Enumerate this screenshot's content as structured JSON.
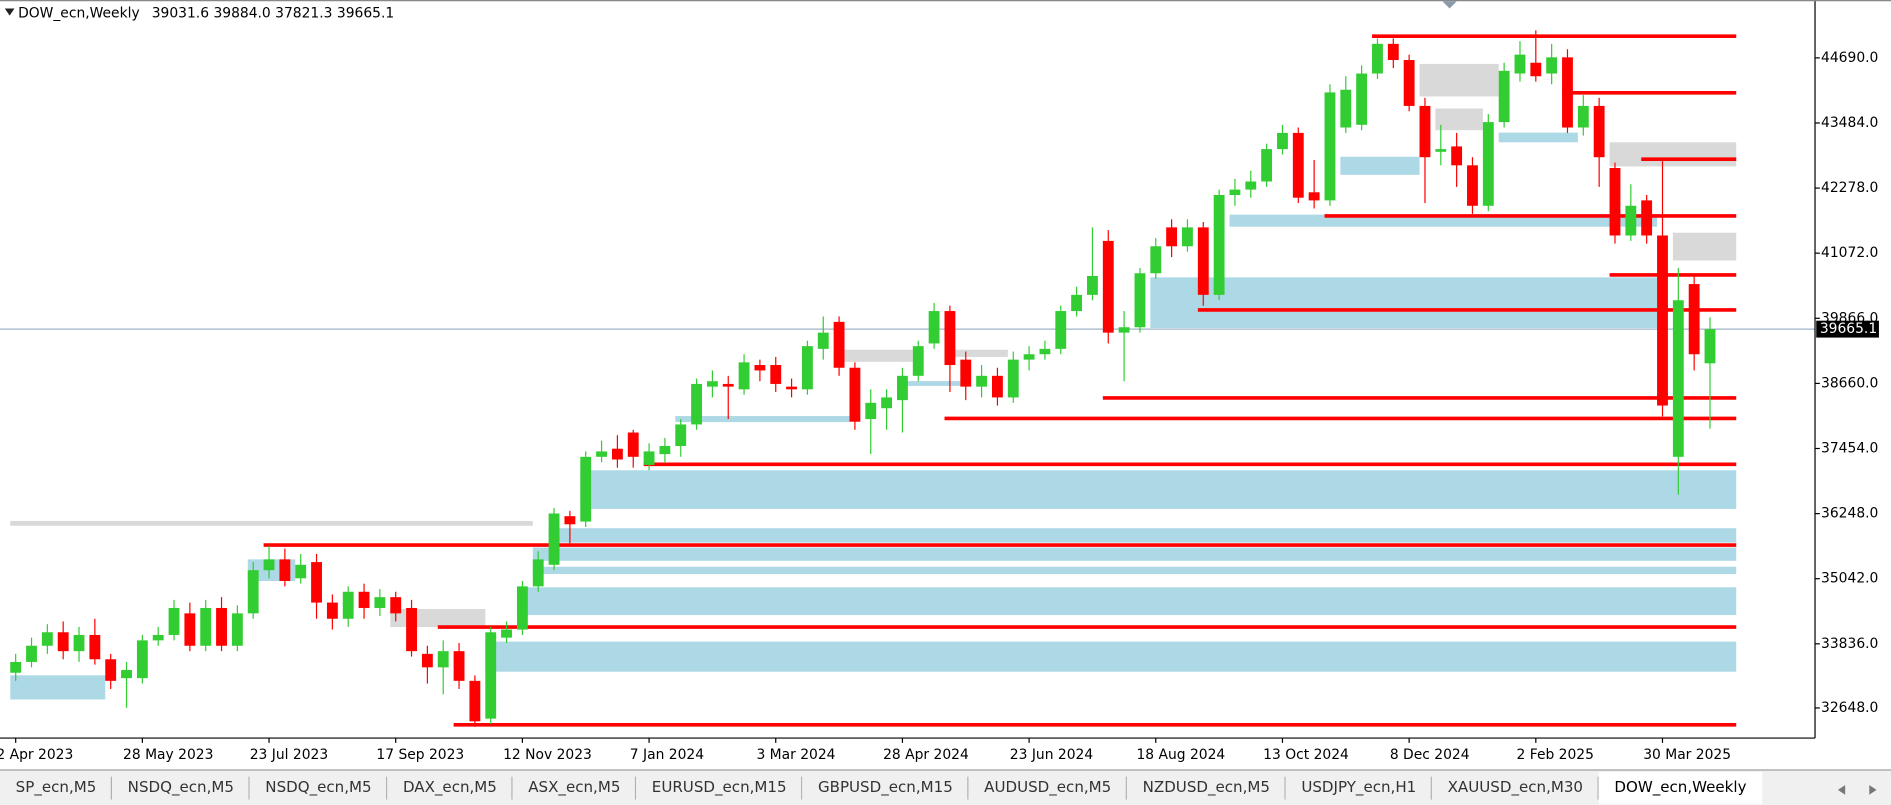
{
  "chart_data": {
    "type": "candlestick",
    "title": "DOW_ecn,Weekly",
    "subtitle": "39031.6 39884.0 37821.3 39665.1",
    "categories": [
      "2 Apr 2023",
      null,
      null,
      null,
      null,
      null,
      null,
      null,
      "28 May 2023",
      null,
      null,
      null,
      null,
      null,
      null,
      null,
      "23 Jul 2023",
      null,
      null,
      null,
      null,
      null,
      null,
      null,
      "17 Sep 2023",
      null,
      null,
      null,
      null,
      null,
      null,
      null,
      "12 Nov 2023",
      null,
      null,
      null,
      null,
      null,
      null,
      null,
      "7 Jan 2024",
      null,
      null,
      null,
      null,
      null,
      null,
      null,
      "3 Mar 2024",
      null,
      null,
      null,
      null,
      null,
      null,
      null,
      "28 Apr 2024",
      null,
      null,
      null,
      null,
      null,
      null,
      null,
      "23 Jun 2024",
      null,
      null,
      null,
      null,
      null,
      null,
      null,
      "18 Aug 2024",
      null,
      null,
      null,
      null,
      null,
      null,
      null,
      "13 Oct 2024",
      null,
      null,
      null,
      null,
      null,
      null,
      null,
      "8 Dec 2024",
      null,
      null,
      null,
      null,
      null,
      null,
      null,
      "2 Feb 2025",
      null,
      null,
      null,
      null,
      null,
      null,
      null,
      "30 Mar 2025",
      null,
      null,
      null
    ],
    "open": [
      33300,
      33500,
      33800,
      34050,
      33700,
      34000,
      33550,
      33200,
      33200,
      33900,
      34000,
      34400,
      33800,
      34500,
      33800,
      34400,
      35200,
      35400,
      35050,
      35350,
      34600,
      34300,
      34800,
      34500,
      34700,
      34500,
      33650,
      33400,
      33700,
      33150,
      32450,
      33950,
      34100,
      34900,
      35300,
      36200,
      36100,
      37300,
      37450,
      37750,
      37150,
      37350,
      37500,
      37900,
      38600,
      38650,
      38550,
      39000,
      39000,
      38600,
      38550,
      39300,
      39800,
      38950,
      38000,
      38200,
      38350,
      38800,
      39400,
      40000,
      39100,
      38600,
      38800,
      38400,
      39100,
      39200,
      39300,
      40000,
      40300,
      41300,
      39600,
      39700,
      40700,
      41550,
      41200,
      41550,
      40300,
      42150,
      42250,
      42400,
      43000,
      43300,
      42200,
      42050,
      43400,
      43450,
      44400,
      44950,
      44650,
      43800,
      42950,
      43050,
      42700,
      41950,
      43500,
      44400,
      44600,
      44400,
      44700,
      43400,
      43800,
      42650,
      41400,
      42050,
      41400,
      37300,
      40500,
      39031.6
    ],
    "high": [
      33650,
      33950,
      34200,
      34250,
      34150,
      34300,
      33650,
      33500,
      34000,
      34150,
      34650,
      34600,
      34650,
      34700,
      34550,
      35350,
      35650,
      35600,
      35500,
      35500,
      34750,
      34900,
      34950,
      34850,
      34800,
      34650,
      33800,
      33900,
      33850,
      33250,
      34150,
      34250,
      35000,
      35550,
      36350,
      36300,
      37400,
      37600,
      37700,
      37800,
      37550,
      37650,
      38000,
      38750,
      38900,
      38800,
      39200,
      39100,
      39150,
      38750,
      39450,
      39900,
      39900,
      39050,
      38550,
      38550,
      38950,
      39450,
      40150,
      40100,
      39250,
      39000,
      38950,
      39250,
      39350,
      39450,
      40100,
      40450,
      41550,
      41500,
      40000,
      40800,
      41350,
      41700,
      41700,
      41650,
      42250,
      42450,
      42600,
      43100,
      43450,
      43400,
      42800,
      44200,
      44350,
      44550,
      45050,
      45050,
      44750,
      43950,
      43450,
      43300,
      42850,
      43650,
      44600,
      45000,
      45200,
      44950,
      44850,
      44000,
      43950,
      42750,
      42350,
      42150,
      42800,
      40800,
      40650,
      39884.0
    ],
    "low": [
      33150,
      33400,
      33650,
      33550,
      33500,
      33450,
      33000,
      32650,
      33100,
      33800,
      33900,
      33700,
      33700,
      33700,
      33700,
      34300,
      35050,
      34900,
      34950,
      34300,
      34100,
      34150,
      34300,
      34350,
      34250,
      33600,
      33100,
      32900,
      33000,
      32300,
      32350,
      33850,
      34000,
      34800,
      35200,
      35700,
      36000,
      37200,
      37100,
      37100,
      37050,
      37200,
      37300,
      37800,
      38400,
      38000,
      38450,
      38700,
      38500,
      38400,
      38450,
      39100,
      38800,
      37800,
      37350,
      37800,
      37750,
      38700,
      39300,
      38500,
      38350,
      38400,
      38250,
      38300,
      38900,
      39100,
      39200,
      39900,
      40200,
      39400,
      38700,
      39600,
      40600,
      41000,
      41100,
      40100,
      40200,
      41950,
      42100,
      42300,
      42900,
      42000,
      41900,
      41950,
      43300,
      43350,
      44300,
      44500,
      43700,
      42000,
      42700,
      42300,
      41800,
      41850,
      43400,
      44250,
      44250,
      44200,
      43300,
      43250,
      42300,
      41250,
      41300,
      41250,
      38050,
      36600,
      38900,
      37821.3
    ],
    "close": [
      33500,
      33800,
      34050,
      33700,
      34000,
      33550,
      33150,
      33350,
      33900,
      34000,
      34500,
      33800,
      34500,
      33800,
      34400,
      35200,
      35400,
      35000,
      35300,
      34600,
      34300,
      34800,
      34500,
      34700,
      34400,
      33700,
      33400,
      33700,
      33150,
      32400,
      34050,
      34100,
      34900,
      35400,
      36250,
      36050,
      37300,
      37400,
      37250,
      37300,
      37400,
      37500,
      37900,
      38650,
      38700,
      38600,
      39050,
      38900,
      38650,
      38550,
      39350,
      39600,
      38950,
      37950,
      38300,
      38400,
      38800,
      39350,
      40000,
      39000,
      38600,
      38800,
      38400,
      39100,
      39200,
      39300,
      40000,
      40300,
      40650,
      39600,
      39700,
      40700,
      41200,
      41200,
      41550,
      40300,
      42150,
      42250,
      42400,
      43000,
      43300,
      42100,
      42050,
      44050,
      44100,
      44400,
      44950,
      44650,
      43800,
      42850,
      43000,
      42700,
      41950,
      43500,
      44450,
      44750,
      44350,
      44700,
      43400,
      43800,
      42850,
      41400,
      41950,
      41400,
      38250,
      40200,
      39200,
      39665.1
    ],
    "up_color": "#32cd32",
    "down_color": "#ff0000",
    "level_color": "#ff0000",
    "price_line_color": "#9fb4c8",
    "ylim": [
      32090,
      45762
    ],
    "yticks": [
      {
        "value": 32648,
        "label": "32648.0"
      },
      {
        "value": 33836,
        "label": "33836.0"
      },
      {
        "value": 35042,
        "label": "35042.0"
      },
      {
        "value": 36248,
        "label": "36248.0"
      },
      {
        "value": 37454,
        "label": "37454.0"
      },
      {
        "value": 38660,
        "label": "38660.0"
      },
      {
        "value": 39866,
        "label": "39866.0"
      },
      {
        "value": 41072,
        "label": "41072.0"
      },
      {
        "value": 42278,
        "label": "42278.0"
      },
      {
        "value": 43484,
        "label": "43484.0"
      },
      {
        "value": 44690,
        "label": "44690.0"
      }
    ],
    "grid": false,
    "zones": [
      {
        "start": 36,
        "end": 109,
        "top": 37050,
        "bottom": 36335,
        "color": "#add8e6"
      },
      {
        "start": 34,
        "end": 109,
        "top": 35978,
        "bottom": 35710,
        "color": "#add8e6"
      },
      {
        "start": 33,
        "end": 109,
        "top": 35620,
        "bottom": 35374,
        "color": "#add8e6"
      },
      {
        "start": 33,
        "end": 109,
        "top": 35263,
        "bottom": 35129,
        "color": "#add8e6"
      },
      {
        "start": 32,
        "end": 109,
        "top": 34883,
        "bottom": 34369,
        "color": "#add8e6"
      },
      {
        "start": 30,
        "end": 109,
        "top": 33877,
        "bottom": 33319,
        "color": "#add8e6"
      },
      {
        "start": 0,
        "end": 6,
        "top": 33252,
        "bottom": 32805,
        "color": "#add8e6"
      },
      {
        "start": 72,
        "end": 104,
        "top": 40624,
        "bottom": 39686,
        "color": "#add8e6"
      },
      {
        "start": 77,
        "end": 104,
        "top": 41786,
        "bottom": 41562,
        "color": "#add8e6"
      },
      {
        "start": 84,
        "end": 89,
        "top": 42858,
        "bottom": 42523,
        "color": "#add8e6"
      },
      {
        "start": 94,
        "end": 99,
        "top": 43305,
        "bottom": 43126,
        "color": "#add8e6"
      },
      {
        "start": 56,
        "end": 60,
        "top": 38703,
        "bottom": 38614,
        "color": "#add8e6"
      },
      {
        "start": 42,
        "end": 53,
        "top": 38055,
        "bottom": 37943,
        "color": "#add8e6"
      },
      {
        "start": 15,
        "end": 18,
        "top": 35400,
        "bottom": 35000,
        "color": "#add8e6"
      },
      {
        "start": 0,
        "end": 33,
        "top": 36112,
        "bottom": 36023,
        "color": "#d9d9d9"
      },
      {
        "start": 24,
        "end": 30,
        "top": 34481,
        "bottom": 34146,
        "color": "#d9d9d9"
      },
      {
        "start": 52,
        "end": 57,
        "top": 39284,
        "bottom": 39060,
        "color": "#d9d9d9"
      },
      {
        "start": 59,
        "end": 63,
        "top": 39284,
        "bottom": 39150,
        "color": "#d9d9d9"
      },
      {
        "start": 89,
        "end": 94,
        "top": 44578,
        "bottom": 43975,
        "color": "#d9d9d9"
      },
      {
        "start": 90,
        "end": 93,
        "top": 43752,
        "bottom": 43350,
        "color": "#d9d9d9"
      },
      {
        "start": 101,
        "end": 109,
        "top": 43126,
        "bottom": 42679,
        "color": "#d9d9d9"
      },
      {
        "start": 105,
        "end": 109,
        "top": 41451,
        "bottom": 40937,
        "color": "#d9d9d9"
      }
    ],
    "levels": [
      {
        "start": 86,
        "end": 109,
        "value": 45092
      },
      {
        "start": 98,
        "end": 109,
        "value": 44042
      },
      {
        "start": 103,
        "end": 109,
        "value": 42813
      },
      {
        "start": 83,
        "end": 109,
        "value": 41763
      },
      {
        "start": 101,
        "end": 109,
        "value": 40669
      },
      {
        "start": 75,
        "end": 109,
        "value": 40021
      },
      {
        "start": 69,
        "end": 109,
        "value": 38390
      },
      {
        "start": 59,
        "end": 109,
        "value": 38010
      },
      {
        "start": 40,
        "end": 109,
        "value": 37162
      },
      {
        "start": 16,
        "end": 109,
        "value": 35665
      },
      {
        "start": 27,
        "end": 109,
        "value": 34146
      },
      {
        "start": 28,
        "end": 109,
        "value": 32336
      }
    ]
  },
  "tabs": [
    "SP_ecn,M5",
    "NSDQ_ecn,M5",
    "NSDQ_ecn,M5",
    "DAX_ecn,M5",
    "ASX_ecn,M5",
    "EURUSD_ecn,M15",
    "GBPUSD_ecn,M15",
    "AUDUSD_ecn,M5",
    "NZDUSD_ecn,M5",
    "USDJPY_ecn,H1",
    "XAUUSD_ecn,M30",
    "DOW_ecn,Weekly"
  ]
}
